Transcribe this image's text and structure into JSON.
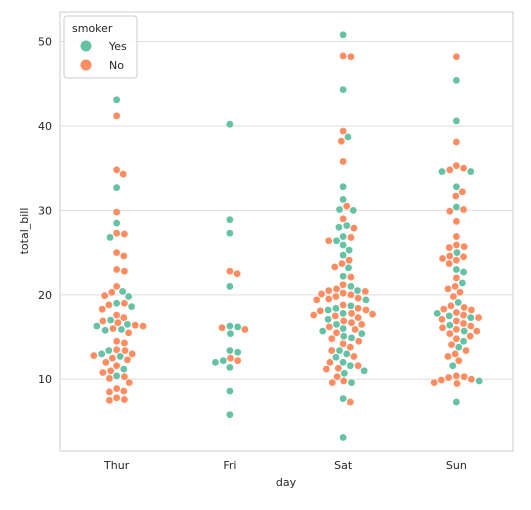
{
  "chart_data": {
    "type": "scatter",
    "subtype": "swarm",
    "xlabel": "day",
    "ylabel": "total_bill",
    "categories": [
      "Thur",
      "Fri",
      "Sat",
      "Sun"
    ],
    "ylim": [
      1.5,
      53.5
    ],
    "yticks": [
      10,
      20,
      30,
      40,
      50
    ],
    "grid": true,
    "legend": {
      "title": "smoker",
      "placement": "top-left"
    },
    "series": [
      {
        "name": "Yes",
        "color": "#66c2a5",
        "points": {
          "Thur": [
            43.1,
            32.7,
            28.5,
            26.8,
            20.4,
            19.8,
            19.0,
            18.6,
            17.0,
            16.5,
            16.3,
            15.9,
            15.8,
            13.4,
            13.0,
            12.7,
            11.2,
            10.4
          ],
          "Fri": [
            40.2,
            28.9,
            27.3,
            21.0,
            16.3,
            16.2,
            15.4,
            13.4,
            13.2,
            12.2,
            12.0,
            11.4,
            8.6,
            5.8
          ],
          "Sat": [
            50.8,
            44.3,
            38.7,
            32.8,
            31.3,
            30.1,
            30.0,
            28.2,
            28.0,
            26.9,
            26.4,
            25.9,
            25.3,
            24.7,
            23.2,
            22.2,
            21.0,
            20.5,
            19.4,
            18.7,
            18.4,
            18.2,
            17.8,
            17.1,
            16.5,
            16.0,
            15.7,
            15.4,
            15.1,
            14.9,
            13.4,
            13.0,
            12.6,
            12.0,
            11.6,
            11.0,
            10.7,
            9.6,
            7.7,
            3.1
          ],
          "Sun": [
            45.4,
            40.6,
            34.6,
            34.6,
            32.8,
            30.4,
            25.0,
            23.0,
            22.7,
            21.4,
            19.1,
            17.8,
            17.5,
            17.3,
            16.4,
            15.7,
            14.5,
            13.8,
            11.6,
            9.8,
            7.3
          ]
        }
      },
      {
        "name": "No",
        "color": "#fc8d62",
        "points": {
          "Thur": [
            41.2,
            34.8,
            34.3,
            29.8,
            27.3,
            27.2,
            25.0,
            24.6,
            23.0,
            22.8,
            21.0,
            20.3,
            19.9,
            19.0,
            18.8,
            18.3,
            17.6,
            17.3,
            16.9,
            16.7,
            16.4,
            16.3,
            16.0,
            15.5,
            14.5,
            14.3,
            13.5,
            13.4,
            13.0,
            12.8,
            12.5,
            12.3,
            12.0,
            11.6,
            11.0,
            10.8,
            10.3,
            10.1,
            9.6,
            8.9,
            8.6,
            8.5,
            7.8,
            7.6,
            7.5
          ],
          "Fri": [
            22.8,
            22.5,
            16.1,
            15.9,
            12.5,
            12.2
          ],
          "Sat": [
            48.3,
            48.2,
            39.4,
            38.2,
            35.8,
            30.5,
            29.0,
            27.9,
            26.8,
            26.4,
            24.1,
            23.7,
            23.3,
            22.1,
            21.2,
            20.7,
            20.5,
            20.4,
            20.2,
            20.1,
            20.0,
            19.8,
            19.6,
            19.5,
            19.4,
            18.8,
            18.4,
            18.2,
            18.1,
            17.8,
            17.7,
            17.6,
            17.5,
            17.3,
            16.9,
            16.7,
            16.5,
            16.2,
            15.9,
            15.5,
            14.8,
            14.5,
            14.2,
            13.8,
            13.4,
            12.7,
            12.0,
            11.6,
            11.3,
            11.2,
            10.3,
            9.8,
            9.6,
            7.3
          ],
          "Sun": [
            48.2,
            38.1,
            35.3,
            35.0,
            34.8,
            32.2,
            31.7,
            30.1,
            29.9,
            28.7,
            26.9,
            25.9,
            25.7,
            25.6,
            24.6,
            24.5,
            24.3,
            24.1,
            23.7,
            22.0,
            21.0,
            20.7,
            20.3,
            19.8,
            18.7,
            18.5,
            18.3,
            18.2,
            17.9,
            17.6,
            17.3,
            17.1,
            16.9,
            16.6,
            16.3,
            16.1,
            15.9,
            15.7,
            15.4,
            15.1,
            14.8,
            14.1,
            13.4,
            13.0,
            12.7,
            12.2,
            10.4,
            10.3,
            10.2,
            10.0,
            9.9,
            9.6,
            9.5
          ]
        }
      }
    ]
  }
}
